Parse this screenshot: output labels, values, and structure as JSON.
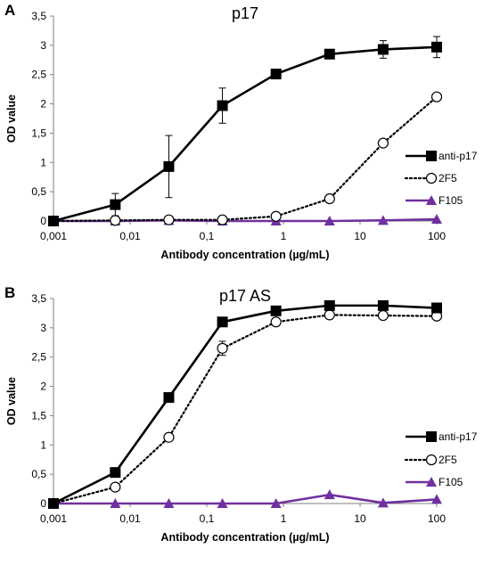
{
  "chart_data": [
    {
      "panel_label": "A",
      "type": "line",
      "title": "p17",
      "xlabel": "Antibody concentration (µg/mL)",
      "ylabel": "OD value",
      "xscale": "log",
      "xlim": [
        0.001,
        100
      ],
      "ylim": [
        0,
        3.5
      ],
      "x_ticks": [
        "0,001",
        "0,01",
        "0,1",
        "1",
        "10",
        "100"
      ],
      "y_ticks": [
        "0",
        "0,5",
        "1",
        "1,5",
        "2",
        "2,5",
        "3",
        "3,5"
      ],
      "legend_position": "right",
      "grid": false,
      "x": [
        0.001,
        0.0064,
        0.032,
        0.16,
        0.8,
        4,
        20,
        100
      ],
      "series": [
        {
          "name": "anti-p17",
          "marker": "filled-square",
          "line": "solid",
          "color": "#000000",
          "values": [
            0,
            0.28,
            0.93,
            1.97,
            2.51,
            2.85,
            2.93,
            2.97
          ],
          "errors": [
            0,
            0.19,
            0.53,
            0.3,
            0,
            0,
            0.15,
            0.18
          ]
        },
        {
          "name": "2F5",
          "marker": "open-circle",
          "line": "dotted",
          "color": "#000000",
          "values": [
            0,
            0.01,
            0.02,
            0.02,
            0.08,
            0.38,
            1.33,
            2.12
          ],
          "errors": [
            0,
            0,
            0,
            0,
            0,
            0,
            0,
            0
          ]
        },
        {
          "name": "F105",
          "marker": "filled-triangle",
          "line": "solid",
          "color": "#7030A0",
          "values": [
            0,
            0,
            0.01,
            0,
            0,
            0,
            0.01,
            0.03
          ],
          "errors": [
            0,
            0,
            0,
            0,
            0,
            0,
            0,
            0
          ]
        }
      ]
    },
    {
      "panel_label": "B",
      "type": "line",
      "title": "p17 AS",
      "xlabel": "Antibody concentration (µg/mL)",
      "ylabel": "OD value",
      "xscale": "log",
      "xlim": [
        0.001,
        100
      ],
      "ylim": [
        0,
        3.5
      ],
      "x_ticks": [
        "0,001",
        "0,01",
        "0,1",
        "1",
        "10",
        "100"
      ],
      "y_ticks": [
        "0",
        "0,5",
        "1",
        "1,5",
        "2",
        "2,5",
        "3",
        "3,5"
      ],
      "legend_position": "right",
      "grid": false,
      "x": [
        0.001,
        0.0064,
        0.032,
        0.16,
        0.8,
        4,
        20,
        100
      ],
      "series": [
        {
          "name": "anti-p17",
          "marker": "filled-square",
          "line": "solid",
          "color": "#000000",
          "values": [
            0,
            0.53,
            1.81,
            3.1,
            3.29,
            3.38,
            3.38,
            3.34
          ],
          "errors": [
            0,
            0,
            0,
            0,
            0.08,
            0,
            0,
            0
          ]
        },
        {
          "name": "2F5",
          "marker": "open-circle",
          "line": "dotted",
          "color": "#000000",
          "values": [
            0,
            0.28,
            1.13,
            2.65,
            3.1,
            3.22,
            3.21,
            3.2
          ],
          "errors": [
            0,
            0,
            0,
            0.12,
            0,
            0,
            0,
            0
          ]
        },
        {
          "name": "F105",
          "marker": "filled-triangle",
          "line": "solid",
          "color": "#7030A0",
          "values": [
            0,
            0,
            0,
            0,
            0,
            0.15,
            0.01,
            0.07
          ],
          "errors": [
            0,
            0,
            0,
            0,
            0,
            0,
            0,
            0
          ]
        }
      ]
    }
  ]
}
